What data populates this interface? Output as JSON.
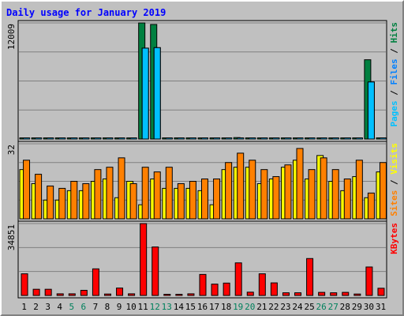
{
  "chart_data": {
    "title": "Daily usage for January 2019",
    "type": "bar",
    "colors": {
      "pages": "#008040",
      "files": "#0080ff",
      "hits": "#00c0ff",
      "visits": "#ffff00",
      "sites": "#ff8000",
      "kbytes": "#ff0000",
      "weekend_day": "#00805c",
      "title": "#0000ff"
    },
    "categories": [
      "1",
      "2",
      "3",
      "4",
      "5",
      "6",
      "7",
      "8",
      "9",
      "10",
      "11",
      "12",
      "13",
      "14",
      "15",
      "16",
      "17",
      "18",
      "19",
      "20",
      "21",
      "22",
      "23",
      "24",
      "25",
      "26",
      "27",
      "28",
      "29",
      "30",
      "31"
    ],
    "weekend_days": [
      "5",
      "6",
      "12",
      "13",
      "19",
      "20",
      "26",
      "27"
    ],
    "panels": [
      {
        "id": "top",
        "scale_label": "12009",
        "legend": [
          {
            "text": "Pages",
            "color": "#00c0ff"
          },
          {
            "text": " / ",
            "color": "#000000"
          },
          {
            "text": "Files",
            "color": "#0080ff"
          },
          {
            "text": " / ",
            "color": "#000000"
          },
          {
            "text": "Hits",
            "color": "#008040"
          }
        ],
        "ymax": 12009,
        "series": [
          {
            "name": "Hits",
            "color": "#008040",
            "values": [
              35,
              35,
              35,
              35,
              35,
              35,
              35,
              35,
              35,
              35,
              12009,
              11850,
              35,
              35,
              35,
              35,
              35,
              35,
              150,
              35,
              35,
              35,
              35,
              35,
              35,
              35,
              35,
              35,
              35,
              8200,
              35
            ]
          },
          {
            "name": "Files",
            "color": "#0080ff",
            "values": [
              25,
              25,
              25,
              25,
              25,
              25,
              25,
              25,
              25,
              25,
              9400,
              9450,
              25,
              25,
              25,
              25,
              25,
              25,
              100,
              25,
              25,
              25,
              25,
              25,
              25,
              25,
              25,
              25,
              25,
              5900,
              25
            ]
          },
          {
            "name": "Pages",
            "color": "#00c0ff",
            "values": [
              15,
              15,
              15,
              15,
              15,
              15,
              15,
              15,
              15,
              15,
              9400,
              9450,
              15,
              15,
              15,
              15,
              15,
              15,
              60,
              15,
              15,
              15,
              15,
              15,
              15,
              15,
              15,
              15,
              15,
              5900,
              15
            ]
          }
        ]
      },
      {
        "id": "middle",
        "scale_label": "32",
        "legend": [
          {
            "text": "Sites",
            "color": "#ff8000"
          },
          {
            "text": " / ",
            "color": "#000000"
          },
          {
            "text": "Visits",
            "color": "#ffff00"
          }
        ],
        "ymax": 32,
        "series": [
          {
            "name": "Visits",
            "color": "#ffff00",
            "values": [
              21,
              15,
              8,
              8,
              12,
              12,
              16,
              17,
              9,
              16,
              6,
              17,
              13,
              13,
              13,
              12,
              6,
              21,
              22,
              22,
              15,
              17,
              22,
              25,
              17,
              27,
              16,
              12,
              18,
              9,
              20
            ]
          },
          {
            "name": "Sites",
            "color": "#ff8000",
            "values": [
              25,
              19,
              14,
              13,
              16,
              15,
              21,
              22,
              26,
              15,
              22,
              20,
              22,
              15,
              16,
              17,
              17,
              24,
              28,
              25,
              21,
              18,
              23,
              30,
              21,
              26,
              21,
              17,
              25,
              11,
              24
            ]
          }
        ]
      },
      {
        "id": "bottom",
        "scale_label": "34851",
        "legend": [
          {
            "text": "KBytes",
            "color": "#ff0000"
          }
        ],
        "ymax": 34851,
        "series": [
          {
            "name": "KBytes",
            "color": "#ff0000",
            "values": [
              10500,
              3000,
              3000,
              800,
              800,
              2500,
              12900,
              700,
              3600,
              800,
              34851,
              23500,
              500,
              500,
              800,
              10200,
              5500,
              6000,
              15800,
              1600,
              10500,
              6100,
              1300,
              1300,
              17900,
              1500,
              1300,
              1500,
              700,
              13800,
              3500
            ]
          }
        ]
      }
    ]
  }
}
